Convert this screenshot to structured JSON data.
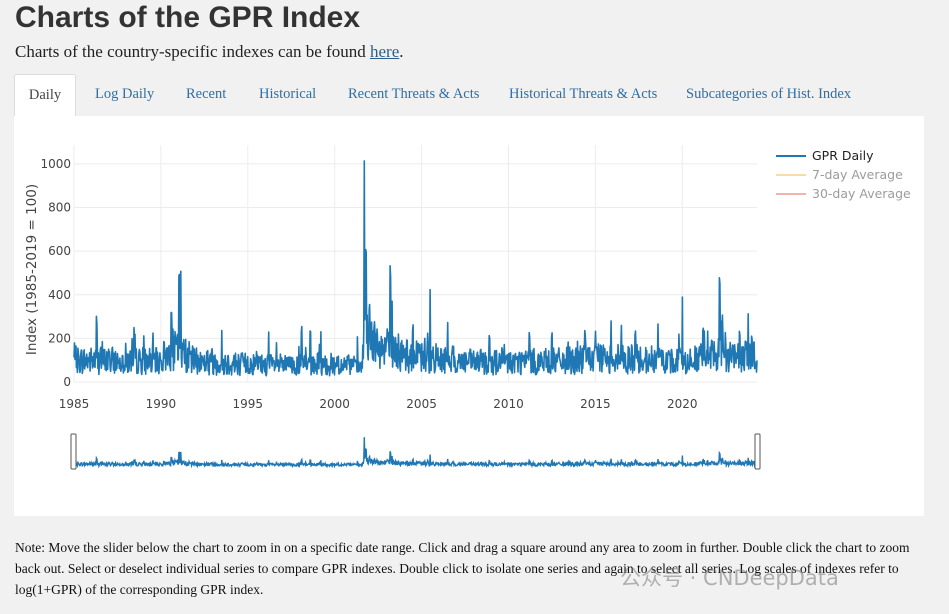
{
  "page": {
    "title": "Charts of the GPR Index",
    "subtitle_prefix": "Charts of the country-specific indexes can be found ",
    "subtitle_link": "here",
    "subtitle_suffix": "."
  },
  "tabs": [
    {
      "label": "Daily",
      "active": true
    },
    {
      "label": "Log Daily",
      "active": false
    },
    {
      "label": "Recent",
      "active": false
    },
    {
      "label": "Historical",
      "active": false
    },
    {
      "label": "Recent Threats & Acts",
      "active": false
    },
    {
      "label": "Historical Threats & Acts",
      "active": false
    },
    {
      "label": "Subcategories of Hist. Index",
      "active": false
    }
  ],
  "legend": [
    {
      "label": "GPR Daily",
      "color": "#1f77b4",
      "visible": true
    },
    {
      "label": "7-day Average",
      "color": "#f5b041",
      "visible": false
    },
    {
      "label": "30-day Average",
      "color": "#e05a4e",
      "visible": false
    }
  ],
  "chart_data": {
    "type": "line",
    "ylabel": "Index (1985-2019 = 100)",
    "xlabel": "",
    "xlim": [
      1985,
      2024.3
    ],
    "ylim": [
      0,
      1050
    ],
    "x_ticks": [
      1985,
      1990,
      1995,
      2000,
      2005,
      2010,
      2015,
      2020
    ],
    "y_ticks": [
      0,
      200,
      400,
      600,
      800,
      1000
    ],
    "grid": true,
    "legend_position": "top-right",
    "range_slider": true,
    "series": [
      {
        "name": "GPR Daily",
        "color": "#1f77b4",
        "baseline": [
          [
            1985,
            100
          ],
          [
            1990,
            95
          ],
          [
            1990.6,
            150
          ],
          [
            1991.3,
            130
          ],
          [
            1992,
            95
          ],
          [
            1997,
            75
          ],
          [
            2000,
            80
          ],
          [
            2001.6,
            70
          ],
          [
            2001.7,
            260
          ],
          [
            2001.9,
            180
          ],
          [
            2002.5,
            160
          ],
          [
            2003.3,
            150
          ],
          [
            2004,
            120
          ],
          [
            2008,
            90
          ],
          [
            2013,
            95
          ],
          [
            2016,
            110
          ],
          [
            2020,
            95
          ],
          [
            2022,
            120
          ],
          [
            2022.3,
            150
          ],
          [
            2023,
            110
          ],
          [
            2024.3,
            120
          ]
        ],
        "spikes": [
          [
            1986.3,
            330
          ],
          [
            1988.5,
            240
          ],
          [
            1990.6,
            370
          ],
          [
            1991.05,
            570
          ],
          [
            1991.15,
            520
          ],
          [
            1993.5,
            250
          ],
          [
            1996.2,
            230
          ],
          [
            1998.1,
            280
          ],
          [
            1998.6,
            270
          ],
          [
            1999.2,
            240
          ],
          [
            2001.7,
            1040
          ],
          [
            2001.8,
            700
          ],
          [
            2002.0,
            400
          ],
          [
            2003.2,
            590
          ],
          [
            2003.3,
            380
          ],
          [
            2004.5,
            290
          ],
          [
            2005.5,
            460
          ],
          [
            2006.5,
            280
          ],
          [
            2008.9,
            240
          ],
          [
            2011.2,
            250
          ],
          [
            2012.5,
            250
          ],
          [
            2014.4,
            260
          ],
          [
            2015.9,
            300
          ],
          [
            2016.5,
            270
          ],
          [
            2017.3,
            260
          ],
          [
            2018.6,
            270
          ],
          [
            2020.0,
            410
          ],
          [
            2021.2,
            280
          ],
          [
            2022.15,
            540
          ],
          [
            2022.3,
            330
          ],
          [
            2023.3,
            260
          ],
          [
            2023.8,
            330
          ],
          [
            2024.0,
            230
          ]
        ]
      }
    ]
  },
  "note": "Note: Move the slider below the chart to zoom in on a specific date range. Click and drag a square around any area to zoom in further. Double click the chart to zoom back out. Select or deselect individual series to compare GPR indexes. Double click to isolate one series and again to select all series. Log scales of indexes refer to log(1+GPR) of the corresponding GPR index.",
  "watermark": "公众号 · CNDeepData"
}
